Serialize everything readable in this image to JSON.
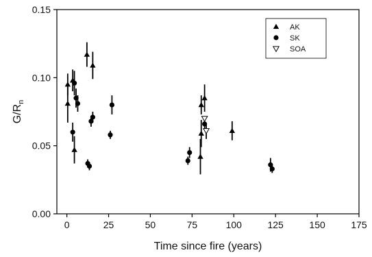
{
  "chart_data": {
    "type": "scatter",
    "xlabel": "Time since fire (years)",
    "ylabel": "G/R",
    "ylabel_subscript": "n",
    "xlim": [
      -6,
      175
    ],
    "ylim": [
      0,
      0.15
    ],
    "xticks": [
      0,
      25,
      50,
      75,
      100,
      125,
      150,
      175
    ],
    "yticks": [
      0.0,
      0.05,
      0.1,
      0.15
    ],
    "ytick_labels": [
      "0.00",
      "0.05",
      "0.10",
      "0.15"
    ],
    "grid": false,
    "legend_position": "top-right",
    "series": [
      {
        "name": "AK",
        "marker": "triangle-up",
        "color": "#000000",
        "points": [
          {
            "x": 0.5,
            "y": 0.095,
            "err": 0.008
          },
          {
            "x": 0.5,
            "y": 0.081,
            "err": 0.014
          },
          {
            "x": 3.5,
            "y": 0.098,
            "err": 0.008
          },
          {
            "x": 4.5,
            "y": 0.047,
            "err": 0.01
          },
          {
            "x": 12,
            "y": 0.117,
            "err": 0.009
          },
          {
            "x": 15.5,
            "y": 0.109,
            "err": 0.01
          },
          {
            "x": 80,
            "y": 0.042,
            "err": 0.013
          },
          {
            "x": 80.5,
            "y": 0.059,
            "err": 0.01
          },
          {
            "x": 80.5,
            "y": 0.08,
            "err": 0.007
          },
          {
            "x": 82.5,
            "y": 0.085,
            "err": 0.01
          },
          {
            "x": 99,
            "y": 0.061,
            "err": 0.007
          }
        ]
      },
      {
        "name": "SK",
        "marker": "circle",
        "color": "#000000",
        "points": [
          {
            "x": 3.5,
            "y": 0.06,
            "err": 0.007
          },
          {
            "x": 4.5,
            "y": 0.096,
            "err": 0.009
          },
          {
            "x": 5.5,
            "y": 0.085,
            "err": 0.007
          },
          {
            "x": 6.5,
            "y": 0.081,
            "err": 0.006
          },
          {
            "x": 12.5,
            "y": 0.037,
            "err": 0.003
          },
          {
            "x": 13.5,
            "y": 0.035,
            "err": 0.003
          },
          {
            "x": 14.5,
            "y": 0.068,
            "err": 0.004
          },
          {
            "x": 15.5,
            "y": 0.071,
            "err": 0.004
          },
          {
            "x": 26,
            "y": 0.058,
            "err": 0.003
          },
          {
            "x": 27,
            "y": 0.08,
            "err": 0.007
          },
          {
            "x": 72.5,
            "y": 0.039,
            "err": 0.003
          },
          {
            "x": 73.5,
            "y": 0.045,
            "err": 0.004
          },
          {
            "x": 82.5,
            "y": 0.066,
            "err": 0.004
          },
          {
            "x": 122,
            "y": 0.036,
            "err": 0.005
          },
          {
            "x": 123,
            "y": 0.033,
            "err": 0.003
          }
        ]
      },
      {
        "name": "SOA",
        "marker": "triangle-down-open",
        "color": "#000000",
        "points": [
          {
            "x": 82.5,
            "y": 0.07,
            "err": 0.0
          },
          {
            "x": 83.5,
            "y": 0.061,
            "err": 0.006
          }
        ]
      }
    ]
  }
}
